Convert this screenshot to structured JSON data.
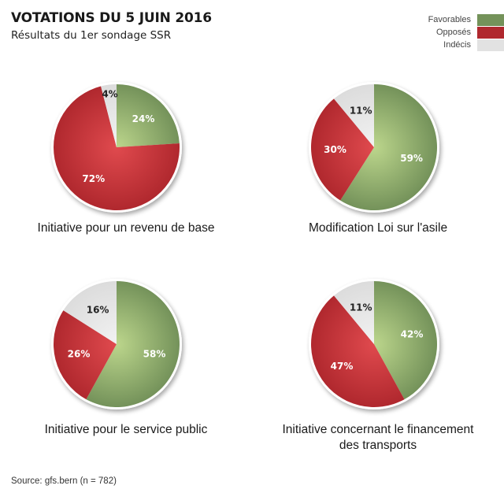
{
  "header": {
    "title": "VOTATIONS DU 5 JUIN 2016",
    "subtitle": "Résultats du 1er sondage SSR"
  },
  "legend": [
    {
      "label": "Favorables",
      "color": "#74925a"
    },
    {
      "label": "Opposés",
      "color": "#b0282e"
    },
    {
      "label": "Indécis",
      "color": "#e2e2e2"
    }
  ],
  "footer": {
    "source": "Source: gfs.bern (n = 782)"
  },
  "colors": {
    "favorables": "#74925a",
    "favorables_light": "#bcd68c",
    "opposes": "#b0282e",
    "opposes_light": "#e04a4e",
    "indecis": "#dcdcdc",
    "indecis_light": "#f2f2f2",
    "label_dark": "#222222",
    "label_light": "#ffffff"
  },
  "chart_data": [
    {
      "type": "pie",
      "title": "Initiative pour un revenu de base",
      "categories": [
        "Favorables",
        "Opposés",
        "Indécis"
      ],
      "values": [
        24,
        72,
        4
      ],
      "labels": [
        "24%",
        "72%",
        "4%"
      ],
      "legend": "top-right"
    },
    {
      "type": "pie",
      "title": "Modification Loi sur l'asile",
      "categories": [
        "Favorables",
        "Opposés",
        "Indécis"
      ],
      "values": [
        59,
        30,
        11
      ],
      "labels": [
        "59%",
        "30%",
        "11%"
      ],
      "legend": "top-right"
    },
    {
      "type": "pie",
      "title": "Initiative pour le service public",
      "categories": [
        "Favorables",
        "Opposés",
        "Indécis"
      ],
      "values": [
        58,
        26,
        16
      ],
      "labels": [
        "58%",
        "26%",
        "16%"
      ],
      "legend": "top-right"
    },
    {
      "type": "pie",
      "title_lines": [
        "Initiative concernant le financement",
        "des transports"
      ],
      "title": "Initiative concernant le financement des transports",
      "categories": [
        "Favorables",
        "Opposés",
        "Indécis"
      ],
      "values": [
        42,
        47,
        11
      ],
      "labels": [
        "42%",
        "47%",
        "11%"
      ],
      "legend": "top-right"
    }
  ]
}
